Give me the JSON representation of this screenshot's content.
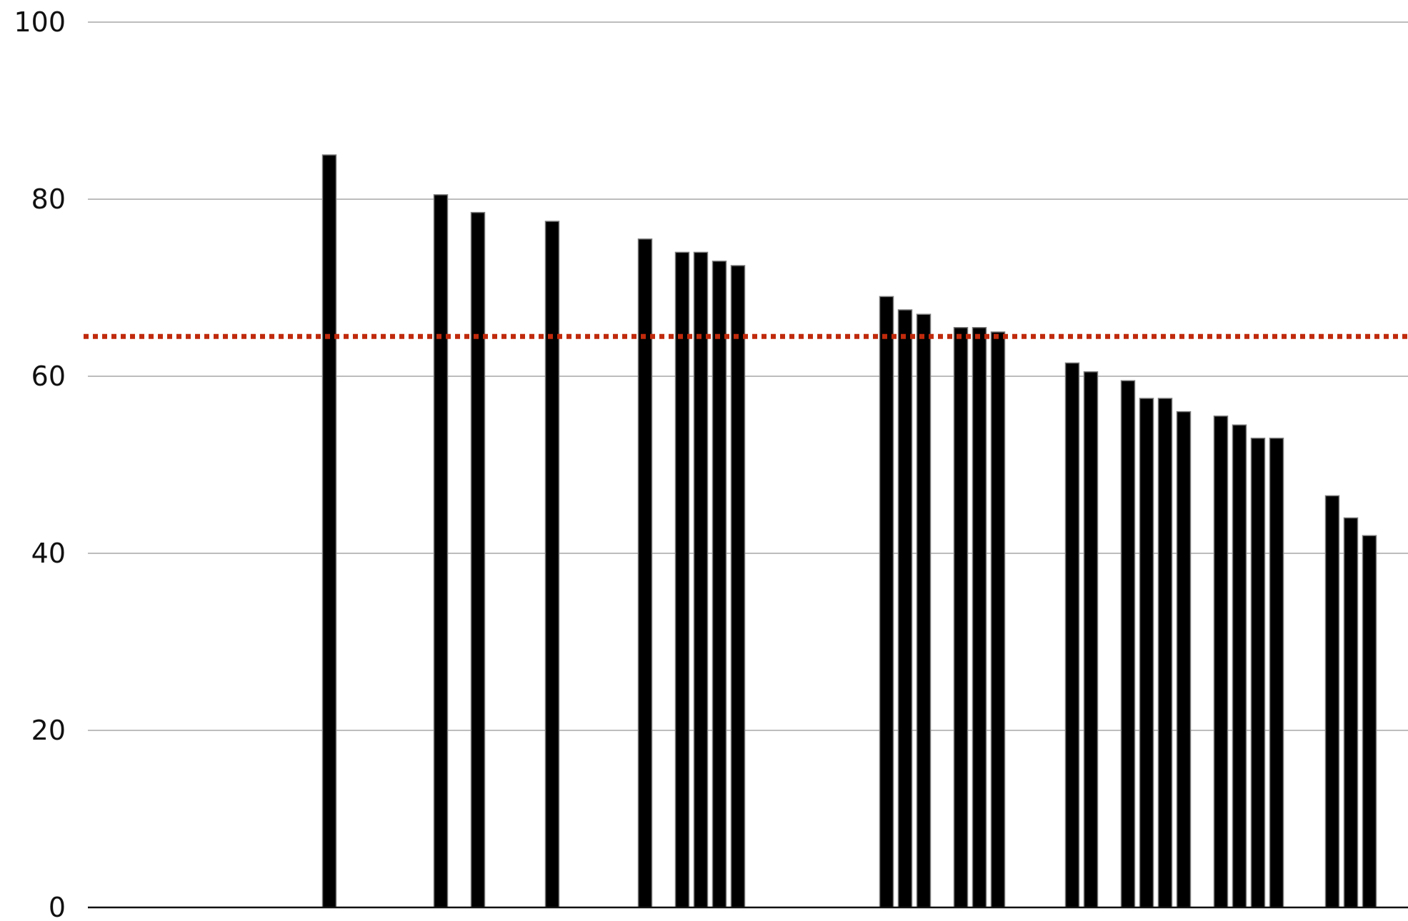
{
  "chart_data": {
    "type": "bar",
    "title": "",
    "xlabel": "",
    "ylabel": "",
    "ylim": [
      0,
      100
    ],
    "y_ticks": [
      0,
      20,
      40,
      60,
      80,
      100
    ],
    "grid": true,
    "x": [
      13,
      19,
      21,
      25,
      30,
      32,
      33,
      34,
      35,
      43,
      44,
      45,
      47,
      48,
      49,
      53,
      54,
      56,
      57,
      58,
      59,
      61,
      62,
      63,
      64,
      67,
      68,
      69
    ],
    "x_range": [
      0,
      71
    ],
    "series": [
      {
        "values": [
          85,
          80.5,
          78.5,
          77.5,
          75.5,
          74,
          74,
          73,
          72.5,
          69,
          67.5,
          67,
          65.5,
          65.5,
          65,
          61.5,
          60.5,
          59.5,
          57.5,
          57.5,
          56,
          55.5,
          54.5,
          53,
          53,
          46.5,
          44,
          42
        ]
      }
    ],
    "reference_line": {
      "value": 64.5,
      "style": "dotted",
      "color": "#c02a0c"
    },
    "colors": {
      "bar": "#000000",
      "bar_edge": "#7a7a7a",
      "grid": "#bdbdbd",
      "axis": "#111111",
      "reference": "#c02a0c"
    }
  }
}
